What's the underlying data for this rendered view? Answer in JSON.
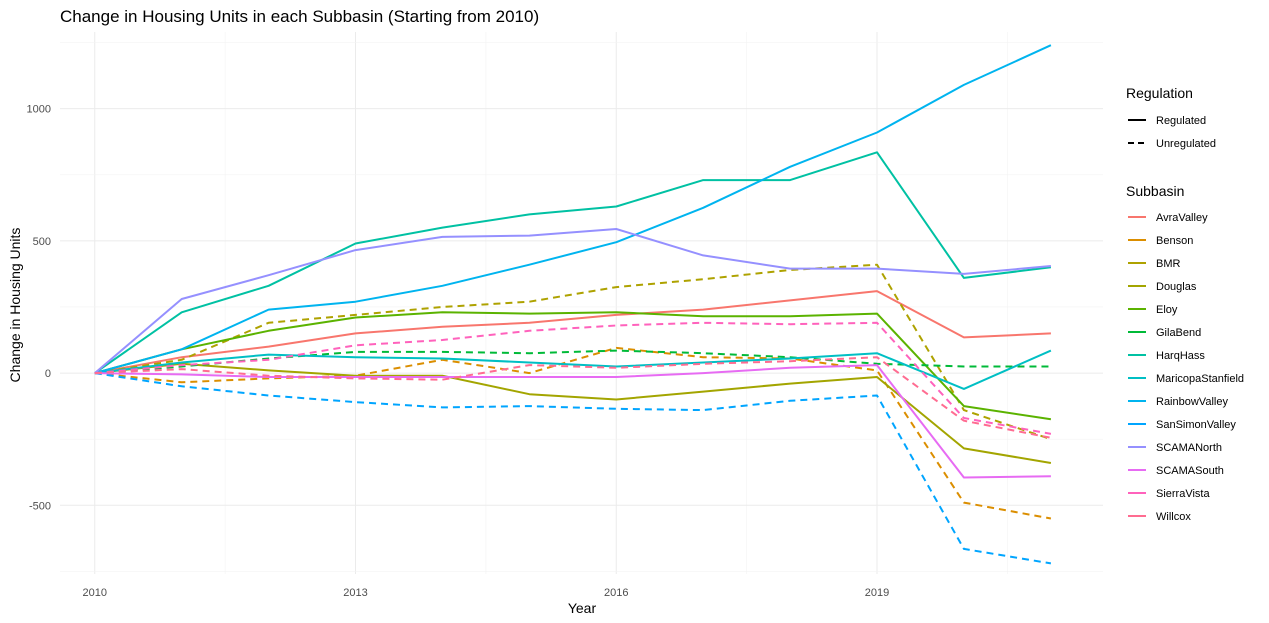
{
  "chart_data": {
    "type": "line",
    "title": "Change in Housing Units in each Subbasin (Starting from 2010)",
    "xlabel": "Year",
    "ylabel": "Change in Housing Units",
    "xlim": [
      2009.6,
      2021.6
    ],
    "ylim": [
      -760,
      1290
    ],
    "x_ticks": [
      2010,
      2013,
      2016,
      2019
    ],
    "y_ticks": [
      -500,
      0,
      500,
      1000
    ],
    "grid": true,
    "x": [
      2010,
      2011,
      2012,
      2013,
      2014,
      2015,
      2016,
      2017,
      2018,
      2019,
      2020,
      2021
    ],
    "legend": {
      "placement": "right",
      "linetype_title": "Regulation",
      "linetype_entries": [
        {
          "label": "Regulated",
          "dash": "solid"
        },
        {
          "label": "Unregulated",
          "dash": "dashed"
        }
      ],
      "color_title": "Subbasin",
      "color_entries": [
        {
          "label": "AvraValley",
          "color": "#F8766D"
        },
        {
          "label": "Benson",
          "color": "#DB8E00"
        },
        {
          "label": "BMR",
          "color": "#AEA200"
        },
        {
          "label": "Douglas",
          "color": "#A3A500"
        },
        {
          "label": "Eloy",
          "color": "#5BB300"
        },
        {
          "label": "GilaBend",
          "color": "#00BA38"
        },
        {
          "label": "HarqHass",
          "color": "#00C1A3"
        },
        {
          "label": "MaricopaStanfield",
          "color": "#00BFC4"
        },
        {
          "label": "RainbowValley",
          "color": "#00B4EF"
        },
        {
          "label": "SanSimonValley",
          "color": "#00A5FF"
        },
        {
          "label": "SCAMANorth",
          "color": "#9590FF"
        },
        {
          "label": "SCAMASouth",
          "color": "#E76BF3"
        },
        {
          "label": "SierraVista",
          "color": "#FF62BC"
        },
        {
          "label": "Willcox",
          "color": "#FF6C91"
        }
      ]
    },
    "series": [
      {
        "name": "AvraValley",
        "color": "#F8766D",
        "dash": "solid",
        "values": [
          0,
          60,
          100,
          150,
          175,
          190,
          220,
          240,
          275,
          310,
          135,
          150
        ]
      },
      {
        "name": "Benson",
        "color": "#DB8E00",
        "dash": "dashed",
        "values": [
          0,
          -35,
          -20,
          -10,
          50,
          0,
          95,
          60,
          55,
          10,
          -490,
          -550
        ]
      },
      {
        "name": "BMR",
        "color": "#AEA200",
        "dash": "dashed",
        "values": [
          0,
          50,
          190,
          220,
          250,
          270,
          325,
          355,
          390,
          410,
          -140,
          -250
        ]
      },
      {
        "name": "Douglas",
        "color": "#A3A500",
        "dash": "solid",
        "values": [
          0,
          35,
          10,
          -10,
          -10,
          -80,
          -100,
          -70,
          -40,
          -15,
          -285,
          -340
        ]
      },
      {
        "name": "Eloy",
        "color": "#5BB300",
        "dash": "solid",
        "values": [
          0,
          90,
          160,
          210,
          230,
          225,
          230,
          215,
          215,
          225,
          -125,
          -175
        ]
      },
      {
        "name": "GilaBend",
        "color": "#00BA38",
        "dash": "dashed",
        "values": [
          0,
          25,
          55,
          80,
          80,
          75,
          85,
          75,
          60,
          35,
          25,
          25
        ]
      },
      {
        "name": "HarqHass",
        "color": "#00C1A3",
        "dash": "solid",
        "values": [
          0,
          230,
          330,
          490,
          550,
          600,
          630,
          730,
          730,
          835,
          360,
          400
        ]
      },
      {
        "name": "MaricopaStanfield",
        "color": "#00BFC4",
        "dash": "solid",
        "values": [
          0,
          40,
          70,
          60,
          55,
          40,
          25,
          40,
          55,
          75,
          -60,
          85
        ]
      },
      {
        "name": "RainbowValley",
        "color": "#00B4EF",
        "dash": "solid",
        "values": [
          0,
          90,
          240,
          270,
          330,
          410,
          495,
          625,
          780,
          910,
          1090,
          1240
        ]
      },
      {
        "name": "SanSimonValley",
        "color": "#00A5FF",
        "dash": "dashed",
        "values": [
          0,
          -50,
          -85,
          -110,
          -130,
          -125,
          -135,
          -140,
          -105,
          -85,
          -665,
          -720
        ]
      },
      {
        "name": "SCAMANorth",
        "color": "#9590FF",
        "dash": "solid",
        "values": [
          0,
          280,
          370,
          465,
          515,
          520,
          545,
          445,
          395,
          395,
          375,
          405
        ]
      },
      {
        "name": "SCAMASouth",
        "color": "#E76BF3",
        "dash": "solid",
        "values": [
          0,
          -5,
          -15,
          -15,
          -15,
          -15,
          -15,
          0,
          20,
          30,
          -395,
          -390
        ]
      },
      {
        "name": "SierraVista",
        "color": "#FF62BC",
        "dash": "dashed",
        "values": [
          0,
          30,
          50,
          105,
          125,
          160,
          180,
          190,
          185,
          190,
          -170,
          -230
        ]
      },
      {
        "name": "Willcox",
        "color": "#FF6C91",
        "dash": "dashed",
        "values": [
          0,
          15,
          -10,
          -20,
          -25,
          30,
          20,
          35,
          45,
          60,
          -180,
          -245
        ]
      }
    ]
  }
}
